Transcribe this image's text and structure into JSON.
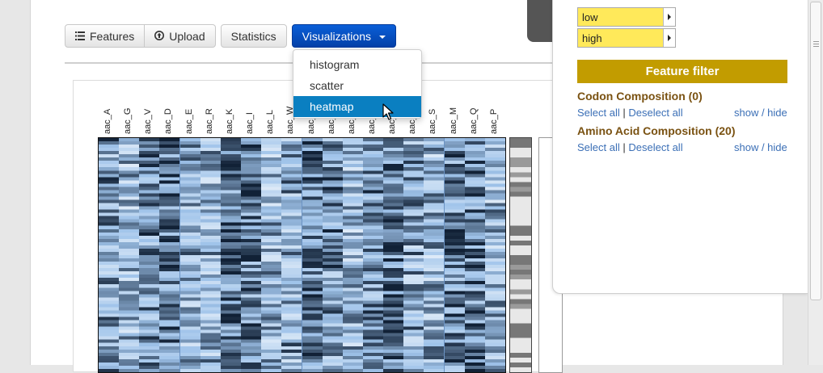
{
  "toolbar": {
    "features_label": "Features",
    "features_icon": "list-icon",
    "upload_label": "Upload",
    "upload_icon": "upload-circle-icon",
    "statistics_label": "Statistics",
    "visualizations_label": "Visualizations",
    "visualizations_color": "#0340a8"
  },
  "visualizations_menu": {
    "items": [
      {
        "label": "histogram"
      },
      {
        "label": "scatter"
      },
      {
        "label": "heatmap",
        "active": true
      }
    ]
  },
  "heatmap": {
    "column_labels": [
      "aac_A",
      "aac_G",
      "aac_V",
      "aac_D",
      "aac_E",
      "aac_R",
      "aac_K",
      "aac_I",
      "aac_L",
      "aac_W",
      "aac_Y",
      "aac_F",
      "aac_C",
      "aac_T",
      "aac_H",
      "aac_N",
      "aac_S",
      "aac_M",
      "aac_Q",
      "aac_P"
    ],
    "colormap": [
      "#0b1a2e",
      "#9fc3ea",
      "#ffffff"
    ]
  },
  "sidebar": {
    "color_low_label": "low",
    "color_high_label": "high",
    "color_swatch": "#ffe95a",
    "feature_filter_title": "Feature filter",
    "feature_filter_color": "#c29c00",
    "groups": [
      {
        "title": "Codon Composition (0)",
        "select_all": "Select all",
        "separator": "|",
        "deselect_all": "Deselect all",
        "toggle": "show / hide"
      },
      {
        "title": "Amino Acid Composition (20)",
        "select_all": "Select all",
        "separator": "|",
        "deselect_all": "Deselect all",
        "toggle": "show / hide"
      }
    ]
  }
}
